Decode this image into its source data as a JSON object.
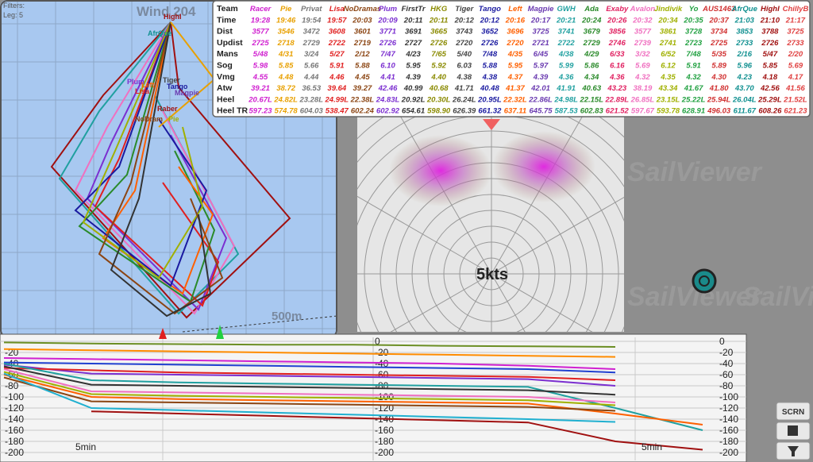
{
  "map": {
    "filters": "Filters:",
    "leg": "Leg: 5",
    "wind": "Wind 204",
    "scale": "500m",
    "boat_labels": [
      "HighI",
      "AfrQue",
      "Plum",
      "Left",
      "Tiger",
      "Tango",
      "Lisa",
      "Magpie",
      "Raber",
      "NoDram",
      "Pie"
    ]
  },
  "table": {
    "header": "Team",
    "columns": [
      {
        "name": "Racer",
        "color": "#d020d0"
      },
      {
        "name": "Pie",
        "color": "#e8a000"
      },
      {
        "name": "Privat",
        "color": "#777777"
      },
      {
        "name": "Lisa",
        "color": "#e02020"
      },
      {
        "name": "NoDramas",
        "color": "#8b4513"
      },
      {
        "name": "Plum",
        "color": "#7b2fd0"
      },
      {
        "name": "FirstTr",
        "color": "#333333"
      },
      {
        "name": "HKG",
        "color": "#8a8a00"
      },
      {
        "name": "Tiger",
        "color": "#444444"
      },
      {
        "name": "Tango",
        "color": "#1a1aa0"
      },
      {
        "name": "Left",
        "color": "#ff6000"
      },
      {
        "name": "Magpie",
        "color": "#6a3ab0"
      },
      {
        "name": "GWH",
        "color": "#20a0a0"
      },
      {
        "name": "Ada",
        "color": "#2a8a2a"
      },
      {
        "name": "Exaby",
        "color": "#e02060"
      },
      {
        "name": "Avalon",
        "color": "#f070c0"
      },
      {
        "name": "Jindivik",
        "color": "#a0b000"
      },
      {
        "name": "Yo",
        "color": "#20a040"
      },
      {
        "name": "AUS1463",
        "color": "#d03030"
      },
      {
        "name": "AfrQue",
        "color": "#109090"
      },
      {
        "name": "HighI",
        "color": "#a01010"
      },
      {
        "name": "ChillyB",
        "color": "#e04040"
      }
    ],
    "rows": [
      {
        "label": "Time",
        "cells": [
          "19:28",
          "19:46",
          "19:54",
          "19:57",
          "20:03",
          "20:09",
          "20:11",
          "20:11",
          "20:12",
          "20:12",
          "20:16",
          "20:17",
          "20:21",
          "20:24",
          "20:26",
          "20:32",
          "20:34",
          "20:35",
          "20:37",
          "21:03",
          "21:10",
          "21:17"
        ]
      },
      {
        "label": "Dist",
        "cells": [
          "3577",
          "3546",
          "3472",
          "3608",
          "3601",
          "3771",
          "3691",
          "3665",
          "3743",
          "3652",
          "3696",
          "3725",
          "3741",
          "3679",
          "3856",
          "3577",
          "3861",
          "3728",
          "3734",
          "3853",
          "3788",
          "3725"
        ]
      },
      {
        "label": "Updist",
        "cells": [
          "2725",
          "2718",
          "2729",
          "2722",
          "2719",
          "2726",
          "2727",
          "2726",
          "2720",
          "2726",
          "2720",
          "2721",
          "2722",
          "2729",
          "2746",
          "2739",
          "2741",
          "2723",
          "2725",
          "2733",
          "2726",
          "2733"
        ]
      },
      {
        "label": "Mans",
        "cells": [
          "5/48",
          "4/31",
          "3/24",
          "5/27",
          "2/12",
          "7/47",
          "4/23",
          "7/65",
          "5/40",
          "7/48",
          "4/35",
          "6/45",
          "4/38",
          "4/29",
          "6/33",
          "3/32",
          "6/52",
          "7/48",
          "5/35",
          "2/16",
          "5/47",
          "2/20"
        ]
      },
      {
        "label": "Sog",
        "cells": [
          "5.98",
          "5.85",
          "5.66",
          "5.91",
          "5.88",
          "6.10",
          "5.95",
          "5.92",
          "6.03",
          "5.88",
          "5.95",
          "5.97",
          "5.99",
          "5.86",
          "6.16",
          "5.69",
          "6.12",
          "5.91",
          "5.89",
          "5.96",
          "5.85",
          "5.69"
        ]
      },
      {
        "label": "Vmg",
        "cells": [
          "4.55",
          "4.48",
          "4.44",
          "4.46",
          "4.45",
          "4.41",
          "4.39",
          "4.40",
          "4.38",
          "4.38",
          "4.37",
          "4.39",
          "4.36",
          "4.34",
          "4.36",
          "4.32",
          "4.35",
          "4.32",
          "4.30",
          "4.23",
          "4.18",
          "4.17"
        ]
      },
      {
        "label": "Atw",
        "cells": [
          "39.21",
          "38.72",
          "36.53",
          "39.64",
          "39.27",
          "42.46",
          "40.99",
          "40.68",
          "41.71",
          "40.48",
          "41.37",
          "42.01",
          "41.91",
          "40.63",
          "43.23",
          "38.19",
          "43.34",
          "41.67",
          "41.80",
          "43.70",
          "42.56",
          "41.56"
        ]
      },
      {
        "label": "Heel",
        "cells": [
          "20.67L",
          "24.82L",
          "23.28L",
          "24.99L",
          "22.38L",
          "24.83L",
          "20.92L",
          "20.30L",
          "26.24L",
          "20.95L",
          "22.32L",
          "22.86L",
          "24.98L",
          "22.15L",
          "22.89L",
          "26.85L",
          "23.15L",
          "25.22L",
          "25.94L",
          "26.04L",
          "25.29L",
          "21.52L"
        ]
      },
      {
        "label": "Heel TR",
        "cells": [
          "597.23",
          "574.78",
          "604.03",
          "538.47",
          "602.24",
          "602.92",
          "654.61",
          "598.90",
          "626.39",
          "661.32",
          "637.11",
          "645.75",
          "587.53",
          "602.83",
          "621.52",
          "597.67",
          "593.78",
          "628.91",
          "496.03",
          "611.67",
          "608.26",
          "621.23"
        ]
      }
    ]
  },
  "polar": {
    "speed_label": "5kts"
  },
  "watermark": "SailViewer",
  "gap_chart": {
    "ylim": [
      0,
      -200
    ],
    "yticks": [
      0,
      -20,
      -40,
      -60,
      -80,
      -100,
      -120,
      -140,
      -160,
      -180,
      -200
    ],
    "time_labels": [
      "5min",
      "5min"
    ],
    "series": [
      {
        "color": "#6b8e23",
        "values": [
          -2,
          -4,
          -5,
          -6,
          -6,
          -8,
          -9,
          -10,
          null
        ]
      },
      {
        "color": "#ff8c00",
        "values": [
          -14,
          -16,
          -18,
          -20,
          -22,
          -24,
          -26,
          -28,
          null
        ]
      },
      {
        "color": "#d020d0",
        "values": [
          -30,
          -32,
          -34,
          -36,
          -38,
          -40,
          -44,
          -50,
          null
        ]
      },
      {
        "color": "#2040d0",
        "values": [
          -38,
          -40,
          -42,
          -44,
          -46,
          -48,
          -50,
          -56,
          null
        ]
      },
      {
        "color": "#7b2fd0",
        "values": [
          -42,
          -58,
          -60,
          -62,
          -64,
          -66,
          -68,
          -80,
          null
        ]
      },
      {
        "color": "#e02020",
        "values": [
          -48,
          -52,
          -56,
          -58,
          -60,
          -62,
          -64,
          -70,
          null
        ]
      },
      {
        "color": "#20a0a0",
        "values": [
          -40,
          -70,
          -74,
          -76,
          -78,
          -80,
          -82,
          -120,
          -160
        ]
      },
      {
        "color": "#333333",
        "values": [
          -45,
          -78,
          -80,
          -82,
          -84,
          -86,
          -88,
          -96,
          null
        ]
      },
      {
        "color": "#f070c0",
        "values": [
          -50,
          -90,
          -92,
          -94,
          -96,
          -98,
          -100,
          -110,
          null
        ]
      },
      {
        "color": "#a0b000",
        "values": [
          -55,
          -95,
          -98,
          -100,
          -102,
          -104,
          -106,
          -115,
          null
        ]
      },
      {
        "color": "#ff6000",
        "values": [
          -60,
          -100,
          -104,
          -106,
          -108,
          -110,
          -112,
          -130,
          -150
        ]
      },
      {
        "color": "#8b4513",
        "values": [
          -65,
          -108,
          -110,
          -112,
          -114,
          -116,
          -118,
          -125,
          null
        ]
      },
      {
        "color": "#20b0d0",
        "values": [
          -58,
          -120,
          -124,
          -128,
          -132,
          -136,
          -140,
          -145,
          null
        ]
      },
      {
        "color": "#a01010",
        "values": [
          null,
          -126,
          -130,
          -134,
          -138,
          -142,
          -146,
          -180,
          -195
        ]
      }
    ]
  },
  "buttons": {
    "screen": "SCRN"
  }
}
